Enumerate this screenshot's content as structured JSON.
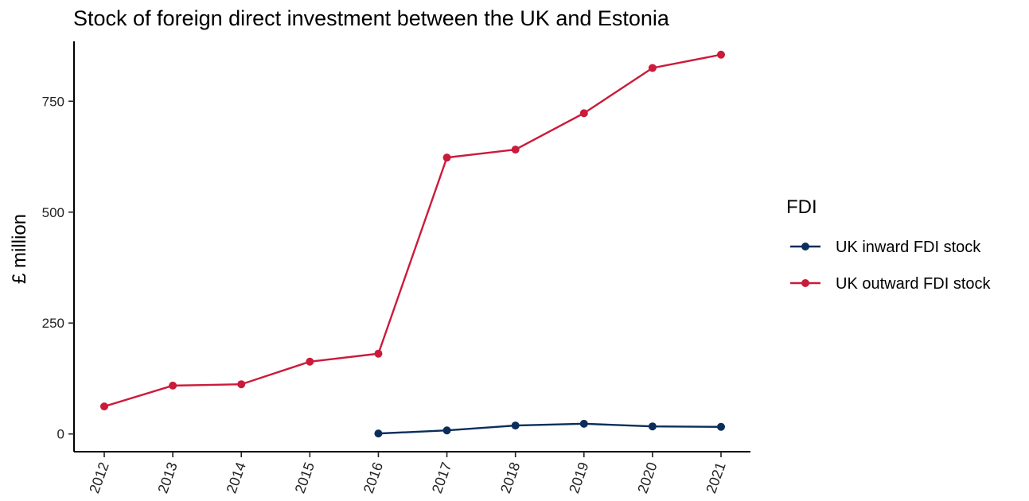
{
  "chart_data": {
    "type": "line",
    "title": "Stock of foreign direct investment between the UK and Estonia",
    "xlabel": "",
    "ylabel": "£ million",
    "x": [
      "2012",
      "2013",
      "2014",
      "2015",
      "2016",
      "2017",
      "2018",
      "2019",
      "2020",
      "2021"
    ],
    "yticks": [
      0,
      250,
      500,
      750
    ],
    "ylim": [
      -40,
      885
    ],
    "grid": false,
    "legend": {
      "title": "FDI",
      "position": "right"
    },
    "series": [
      {
        "name": "UK inward FDI stock",
        "color": "#0b2d5c",
        "values": [
          null,
          null,
          null,
          null,
          1,
          8,
          19,
          23,
          17,
          16
        ]
      },
      {
        "name": "UK outward FDI stock",
        "color": "#cc1a3a",
        "values": [
          62,
          109,
          112,
          163,
          181,
          623,
          641,
          723,
          825,
          855
        ]
      }
    ]
  }
}
